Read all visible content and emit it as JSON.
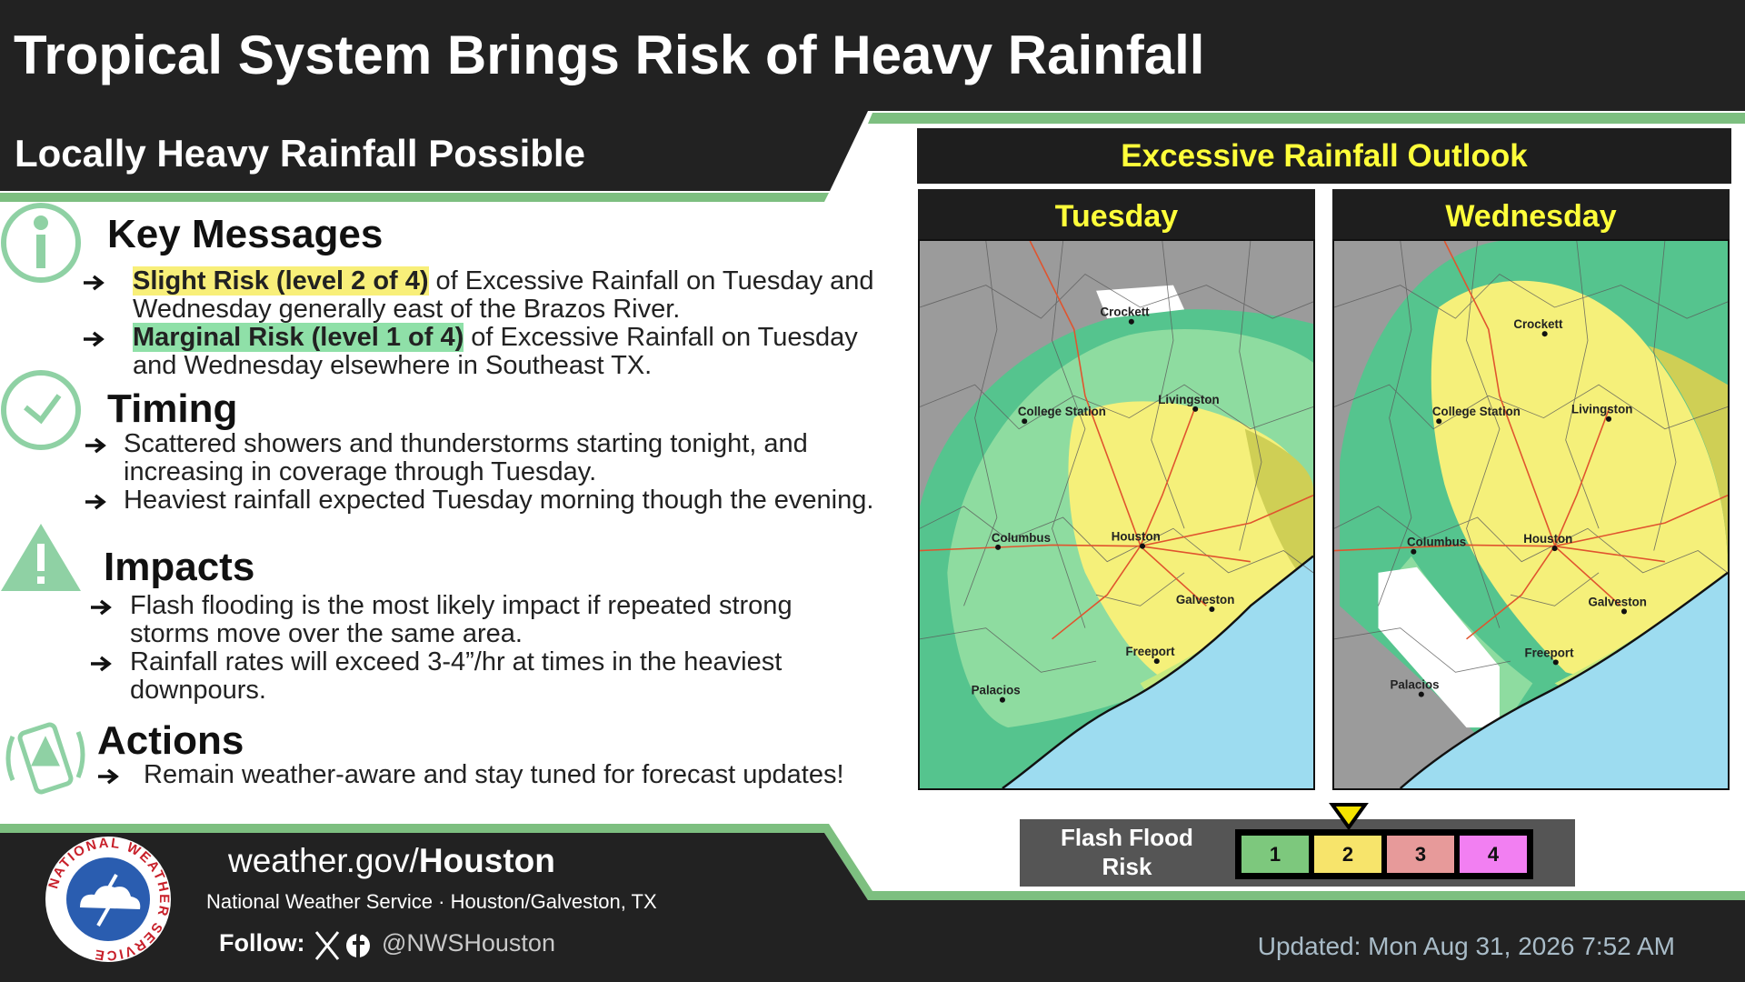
{
  "header": {
    "title": "Tropical System Brings Risk of Heavy Rainfall",
    "subtitle": "Locally Heavy Rainfall Possible"
  },
  "sections": [
    {
      "heading": "Key Messages",
      "bullets": [
        {
          "highlight": "Slight Risk (level 2 of 4)",
          "text": "of Excessive Rainfall on Tuesday and Wednesday generally east of the Brazos River."
        },
        {
          "highlight": "Marginal Risk (level 1 of 4)",
          "text": "of Excessive Rainfall on Tuesday and Wednesday elsewhere in Southeast TX."
        }
      ]
    },
    {
      "heading": "Timing",
      "bullets": [
        {
          "text": "Scattered showers and thunderstorms starting tonight, and increasing in coverage through Tuesday."
        },
        {
          "text": "Heaviest rainfall expected Tuesday morning though the evening."
        }
      ]
    },
    {
      "heading": "Impacts",
      "bullets": [
        {
          "text": "Flash flooding is the most likely impact if repeated strong storms move over the same area."
        },
        {
          "text": "Rainfall rates will exceed 3-4”/hr at times in the heaviest downpours."
        }
      ]
    },
    {
      "heading": "Actions",
      "bullets": [
        {
          "text": "Remain weather-aware and stay tuned for forecast updates!"
        }
      ]
    }
  ],
  "outlook": {
    "title": "Excessive Rainfall Outlook",
    "days": [
      "Tuesday",
      "Wednesday"
    ],
    "cities": [
      "Crockett",
      "Livingston",
      "College Station",
      "Columbus",
      "Houston",
      "Galveston",
      "Freeport",
      "Palacios"
    ]
  },
  "legend": {
    "label": "Flash Flood Risk",
    "levels": [
      1,
      2,
      3,
      4
    ]
  },
  "footer": {
    "website_prefix": "weather.gov/",
    "website_office": "Houston",
    "office": "National Weather Service · Houston/Galveston, TX",
    "follow": "Follow:",
    "handle": "@NWSHouston",
    "updated": "Updated: Mon Aug 31, 2026 7:52 AM",
    "logo_text": "NATIONAL WEATHER SERVICE"
  }
}
